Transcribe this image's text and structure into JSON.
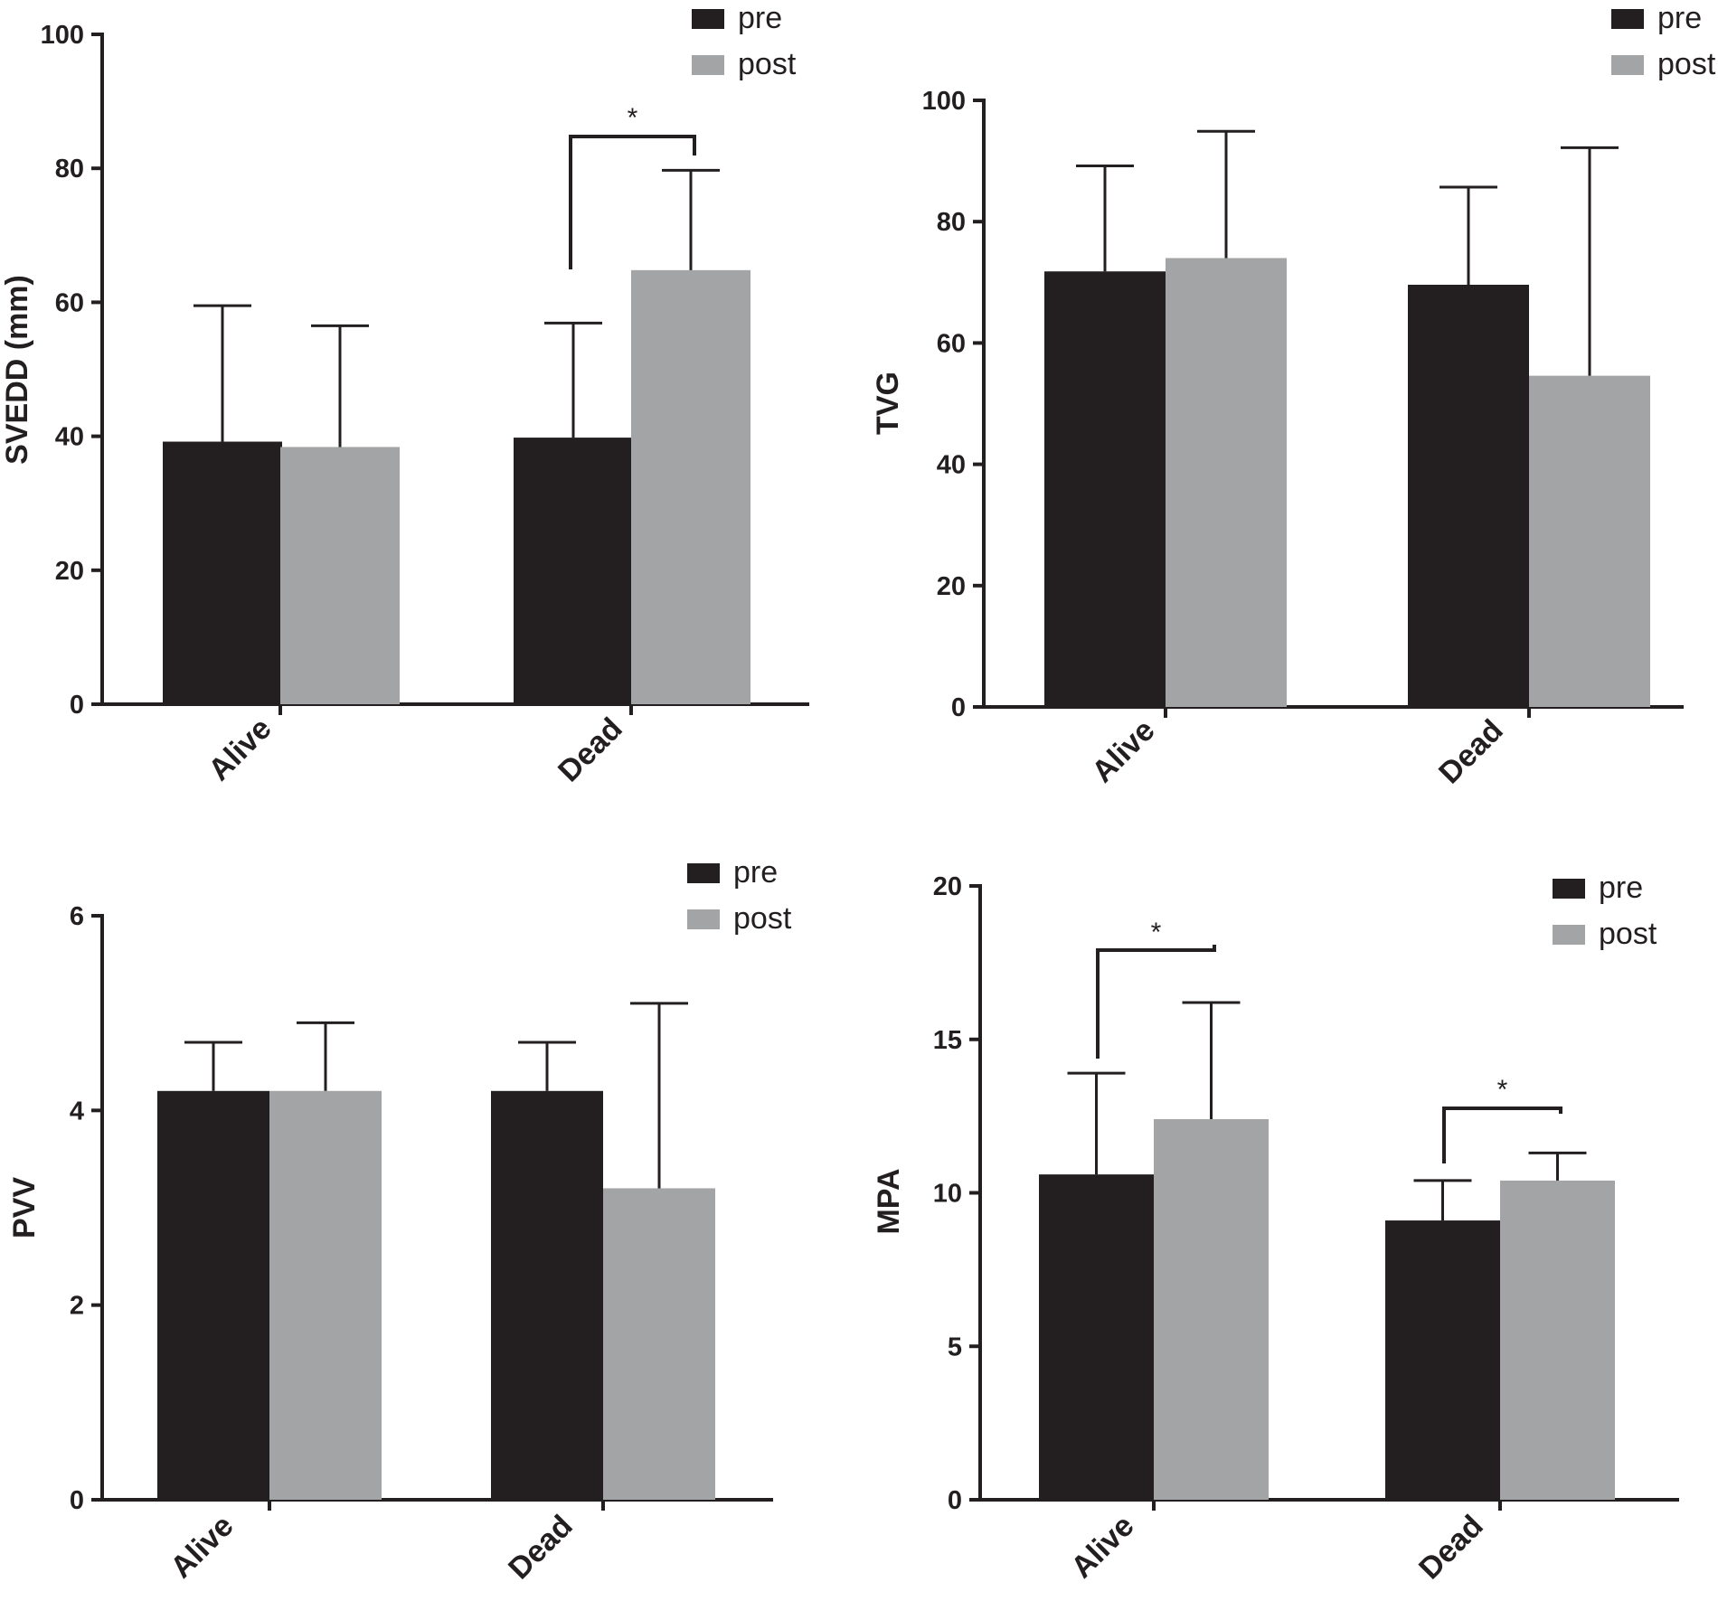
{
  "colors": {
    "pre": "#231f20",
    "post": "#a3a4a6",
    "axis": "#231f20"
  },
  "chart_data": [
    {
      "type": "bar",
      "title": "",
      "xlabel": "",
      "ylabel": "SVEDD (mm)",
      "ylim": [
        0,
        100
      ],
      "yticks": [
        "0",
        "20",
        "40",
        "60",
        "80",
        "100"
      ],
      "categories": [
        "Alive",
        "Dead"
      ],
      "legend_position": "top-right",
      "series": [
        {
          "name": "pre",
          "values": [
            39.2,
            39.8
          ],
          "error": [
            20.3,
            17.1
          ]
        },
        {
          "name": "post",
          "values": [
            38.4,
            64.8
          ],
          "error": [
            18.1,
            14.9
          ]
        }
      ],
      "significance": [
        {
          "category": "Dead",
          "label": "*"
        }
      ]
    },
    {
      "type": "bar",
      "title": "",
      "xlabel": "",
      "ylabel": "TVG",
      "ylim": [
        0,
        100
      ],
      "yticks": [
        "0",
        "20",
        "40",
        "60",
        "80",
        "100"
      ],
      "categories": [
        "Alive",
        "Dead"
      ],
      "legend_position": "top-right",
      "series": [
        {
          "name": "pre",
          "values": [
            71.8,
            69.6
          ],
          "error": [
            17.4,
            16.1
          ]
        },
        {
          "name": "post",
          "values": [
            74.0,
            54.6
          ],
          "error": [
            20.9,
            37.6
          ]
        }
      ],
      "significance": []
    },
    {
      "type": "bar",
      "title": "",
      "xlabel": "",
      "ylabel": "PVV",
      "ylim": [
        0,
        6
      ],
      "yticks": [
        "0",
        "2",
        "4",
        "6"
      ],
      "categories": [
        "Alive",
        "Dead"
      ],
      "legend_position": "top-right",
      "series": [
        {
          "name": "pre",
          "values": [
            4.2,
            4.2
          ],
          "error": [
            0.5,
            0.5
          ]
        },
        {
          "name": "post",
          "values": [
            4.2,
            3.2
          ],
          "error": [
            0.7,
            1.9
          ]
        }
      ],
      "significance": []
    },
    {
      "type": "bar",
      "title": "",
      "xlabel": "",
      "ylabel": "MPA",
      "ylim": [
        0,
        20
      ],
      "yticks": [
        "0",
        "5",
        "10",
        "15",
        "20"
      ],
      "categories": [
        "Alive",
        "Dead"
      ],
      "legend_position": "top-right",
      "series": [
        {
          "name": "pre",
          "values": [
            10.6,
            9.1
          ],
          "error": [
            3.3,
            1.3
          ]
        },
        {
          "name": "post",
          "values": [
            12.4,
            10.4
          ],
          "error": [
            3.8,
            0.9
          ]
        }
      ],
      "significance": [
        {
          "category": "Alive",
          "label": "*"
        },
        {
          "category": "Dead",
          "label": "*"
        }
      ]
    }
  ]
}
